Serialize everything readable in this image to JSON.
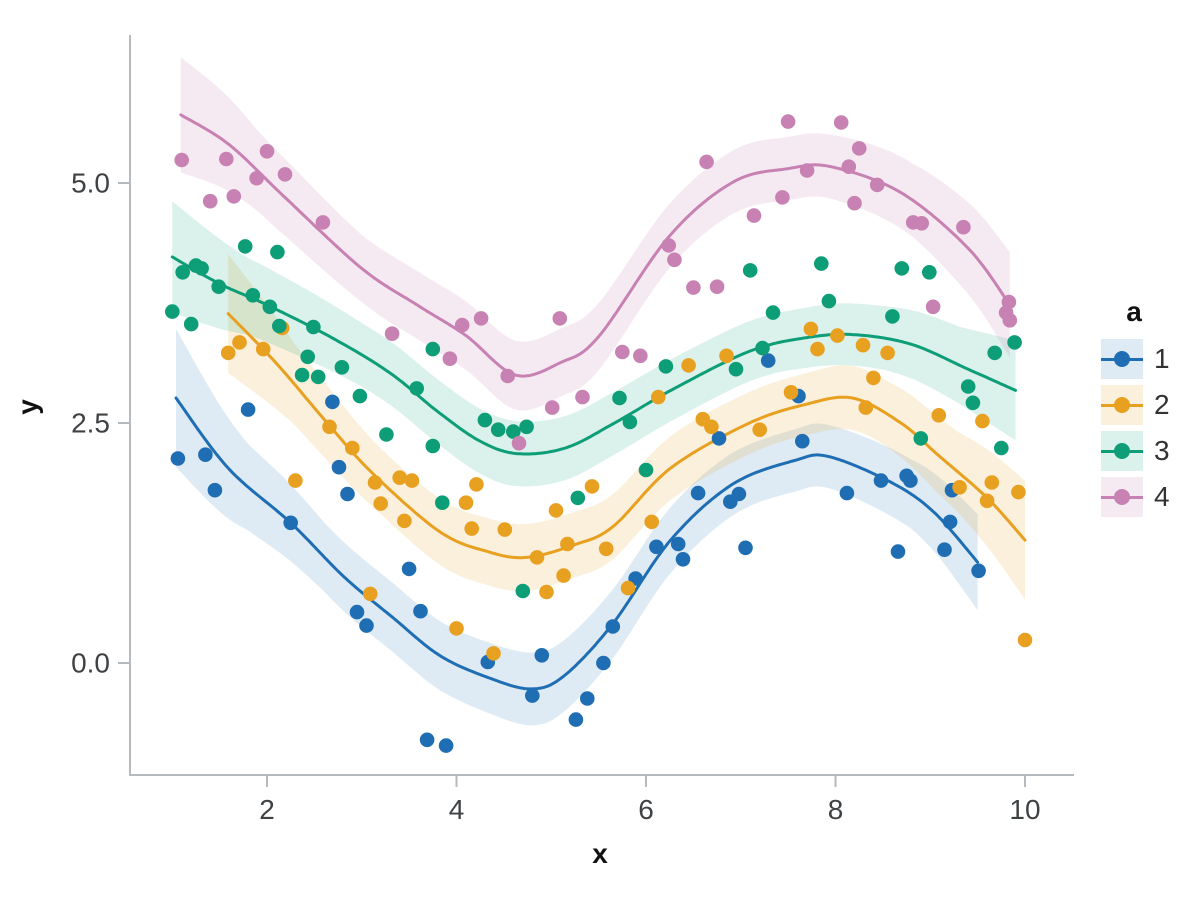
{
  "chart_data": {
    "type": "scatter",
    "subtype": "scatter with loess smooth lines and confidence ribbons",
    "title": "",
    "xlabel": "x",
    "ylabel": "y",
    "xlim": [
      0.55,
      10.47
    ],
    "ylim": [
      -1.17,
      6.54
    ],
    "x_ticks": [
      "2",
      "4",
      "6",
      "8",
      "10"
    ],
    "x_tick_values": [
      2,
      4,
      6,
      8,
      10
    ],
    "y_ticks": [
      "0.0",
      "2.5",
      "5.0"
    ],
    "y_tick_values": [
      0.0,
      2.5,
      5.0
    ],
    "grid": "off",
    "axis_color": "#b5babe",
    "tick_label_color": "#3f4245",
    "legend": {
      "position": "right",
      "title": "a",
      "entries": [
        {
          "label": "1",
          "color": "#1f6eb4",
          "band": "rgba(31,110,180,0.14)"
        },
        {
          "label": "2",
          "color": "#e8a020",
          "band": "rgba(232,160,32,0.16)"
        },
        {
          "label": "3",
          "color": "#0d9e77",
          "band": "rgba(13,158,119,0.15)"
        },
        {
          "label": "4",
          "color": "#c781b2",
          "band": "rgba(199,129,178,0.17)"
        }
      ]
    },
    "series": [
      {
        "name": "1",
        "color": "#1f6eb4",
        "band_color": "rgba(31,110,180,0.14)",
        "points": [
          [
            1.06,
            2.13
          ],
          [
            1.35,
            2.17
          ],
          [
            1.45,
            1.8
          ],
          [
            1.8,
            2.64
          ],
          [
            2.25,
            1.46
          ],
          [
            2.69,
            2.72
          ],
          [
            2.76,
            2.04
          ],
          [
            2.85,
            1.76
          ],
          [
            2.95,
            0.53
          ],
          [
            3.05,
            0.39
          ],
          [
            3.5,
            0.98
          ],
          [
            3.62,
            0.54
          ],
          [
            3.69,
            -0.8
          ],
          [
            3.89,
            -0.86
          ],
          [
            4.33,
            0.01
          ],
          [
            4.8,
            -0.34
          ],
          [
            4.9,
            0.08
          ],
          [
            5.26,
            -0.59
          ],
          [
            5.38,
            -0.37
          ],
          [
            5.55,
            0.0
          ],
          [
            5.65,
            0.38
          ],
          [
            5.89,
            0.88
          ],
          [
            6.11,
            1.21
          ],
          [
            6.34,
            1.24
          ],
          [
            6.39,
            1.08
          ],
          [
            6.55,
            1.77
          ],
          [
            6.77,
            2.34
          ],
          [
            6.89,
            1.68
          ],
          [
            6.98,
            1.76
          ],
          [
            7.05,
            1.2
          ],
          [
            7.29,
            3.15
          ],
          [
            7.61,
            2.78
          ],
          [
            7.65,
            2.31
          ],
          [
            8.12,
            1.77
          ],
          [
            8.48,
            1.9
          ],
          [
            8.66,
            1.16
          ],
          [
            8.75,
            1.95
          ],
          [
            8.79,
            1.9
          ],
          [
            9.15,
            1.18
          ],
          [
            9.21,
            1.47
          ],
          [
            9.23,
            1.8
          ],
          [
            9.51,
            0.96
          ]
        ],
        "line": [
          [
            1.04,
            2.76
          ],
          [
            1.59,
            2.03
          ],
          [
            2.25,
            1.46
          ],
          [
            2.81,
            0.9
          ],
          [
            3.32,
            0.48
          ],
          [
            3.82,
            0.08
          ],
          [
            4.33,
            -0.15
          ],
          [
            4.79,
            -0.27
          ],
          [
            5.14,
            -0.13
          ],
          [
            5.65,
            0.41
          ],
          [
            6.26,
            1.28
          ],
          [
            6.91,
            1.86
          ],
          [
            7.57,
            2.11
          ],
          [
            7.93,
            2.15
          ],
          [
            8.59,
            1.88
          ],
          [
            9.04,
            1.57
          ],
          [
            9.5,
            1.05
          ]
        ],
        "band_halfwidth": [
          [
            1.04,
            0.72
          ],
          [
            1.8,
            0.45
          ],
          [
            2.6,
            0.36
          ],
          [
            4.0,
            0.36
          ],
          [
            4.8,
            0.38
          ],
          [
            6.0,
            0.35
          ],
          [
            7.2,
            0.32
          ],
          [
            8.0,
            0.33
          ],
          [
            8.8,
            0.36
          ],
          [
            9.5,
            0.5
          ]
        ]
      },
      {
        "name": "2",
        "color": "#e8a020",
        "band_color": "rgba(232,160,32,0.16)",
        "points": [
          [
            1.59,
            3.23
          ],
          [
            1.71,
            3.34
          ],
          [
            1.96,
            3.27
          ],
          [
            2.16,
            3.49
          ],
          [
            2.3,
            1.9
          ],
          [
            2.66,
            2.46
          ],
          [
            2.9,
            2.24
          ],
          [
            3.09,
            0.72
          ],
          [
            3.14,
            1.88
          ],
          [
            3.2,
            1.66
          ],
          [
            3.4,
            1.93
          ],
          [
            3.45,
            1.48
          ],
          [
            3.53,
            1.9
          ],
          [
            4.0,
            0.36
          ],
          [
            4.1,
            1.67
          ],
          [
            4.16,
            1.4
          ],
          [
            4.21,
            1.86
          ],
          [
            4.39,
            0.1
          ],
          [
            4.51,
            1.39
          ],
          [
            4.85,
            1.1
          ],
          [
            4.95,
            0.74
          ],
          [
            5.05,
            1.59
          ],
          [
            5.13,
            0.91
          ],
          [
            5.17,
            1.24
          ],
          [
            5.43,
            1.84
          ],
          [
            5.58,
            1.19
          ],
          [
            5.81,
            0.78
          ],
          [
            6.06,
            1.47
          ],
          [
            6.13,
            2.77
          ],
          [
            6.45,
            3.1
          ],
          [
            6.6,
            2.54
          ],
          [
            6.69,
            2.46
          ],
          [
            6.85,
            3.2
          ],
          [
            7.2,
            2.43
          ],
          [
            7.53,
            2.82
          ],
          [
            7.74,
            3.48
          ],
          [
            7.81,
            3.27
          ],
          [
            8.02,
            3.41
          ],
          [
            8.29,
            3.31
          ],
          [
            8.32,
            2.66
          ],
          [
            8.4,
            2.97
          ],
          [
            8.55,
            3.23
          ],
          [
            9.09,
            2.58
          ],
          [
            9.31,
            1.83
          ],
          [
            9.55,
            2.52
          ],
          [
            9.6,
            1.69
          ],
          [
            9.65,
            1.88
          ],
          [
            9.93,
            1.78
          ],
          [
            10.0,
            0.24
          ]
        ],
        "line": [
          [
            1.59,
            3.64
          ],
          [
            2.1,
            3.12
          ],
          [
            2.61,
            2.53
          ],
          [
            3.11,
            1.98
          ],
          [
            3.82,
            1.37
          ],
          [
            4.33,
            1.16
          ],
          [
            4.74,
            1.1
          ],
          [
            5.24,
            1.23
          ],
          [
            5.65,
            1.42
          ],
          [
            6.26,
            2.03
          ],
          [
            7.07,
            2.49
          ],
          [
            7.67,
            2.69
          ],
          [
            8.18,
            2.76
          ],
          [
            8.69,
            2.5
          ],
          [
            9.09,
            2.16
          ],
          [
            9.6,
            1.72
          ],
          [
            10.0,
            1.28
          ]
        ],
        "band_halfwidth": [
          [
            1.59,
            0.62
          ],
          [
            2.3,
            0.42
          ],
          [
            3.2,
            0.34
          ],
          [
            4.5,
            0.35
          ],
          [
            5.5,
            0.34
          ],
          [
            6.5,
            0.33
          ],
          [
            7.5,
            0.32
          ],
          [
            8.5,
            0.34
          ],
          [
            9.3,
            0.42
          ],
          [
            10.0,
            0.62
          ]
        ]
      },
      {
        "name": "3",
        "color": "#0d9e77",
        "band_color": "rgba(13,158,119,0.15)",
        "points": [
          [
            1.0,
            3.66
          ],
          [
            1.11,
            4.07
          ],
          [
            1.2,
            3.53
          ],
          [
            1.25,
            4.14
          ],
          [
            1.31,
            4.11
          ],
          [
            1.49,
            3.92
          ],
          [
            1.77,
            4.34
          ],
          [
            1.85,
            3.83
          ],
          [
            2.03,
            3.71
          ],
          [
            2.11,
            4.28
          ],
          [
            2.13,
            3.51
          ],
          [
            2.37,
            3.0
          ],
          [
            2.43,
            3.19
          ],
          [
            2.49,
            3.5
          ],
          [
            2.54,
            2.98
          ],
          [
            2.79,
            3.08
          ],
          [
            2.98,
            2.78
          ],
          [
            3.26,
            2.38
          ],
          [
            3.58,
            2.86
          ],
          [
            3.75,
            3.27
          ],
          [
            3.75,
            2.26
          ],
          [
            3.85,
            1.67
          ],
          [
            4.3,
            2.53
          ],
          [
            4.44,
            2.43
          ],
          [
            4.6,
            2.41
          ],
          [
            4.74,
            2.46
          ],
          [
            4.7,
            0.75
          ],
          [
            5.28,
            1.72
          ],
          [
            5.72,
            2.76
          ],
          [
            5.83,
            2.51
          ],
          [
            6.0,
            2.01
          ],
          [
            6.21,
            3.09
          ],
          [
            6.95,
            3.06
          ],
          [
            7.1,
            4.09
          ],
          [
            7.23,
            3.28
          ],
          [
            7.34,
            3.65
          ],
          [
            7.85,
            4.16
          ],
          [
            7.93,
            3.77
          ],
          [
            8.6,
            3.61
          ],
          [
            8.7,
            4.11
          ],
          [
            8.9,
            2.34
          ],
          [
            8.99,
            4.07
          ],
          [
            9.4,
            2.88
          ],
          [
            9.45,
            2.71
          ],
          [
            9.68,
            3.23
          ],
          [
            9.75,
            2.24
          ],
          [
            9.89,
            3.34
          ]
        ],
        "line": [
          [
            1.0,
            4.23
          ],
          [
            1.5,
            3.95
          ],
          [
            2.0,
            3.73
          ],
          [
            2.7,
            3.38
          ],
          [
            3.3,
            3.02
          ],
          [
            3.8,
            2.62
          ],
          [
            4.25,
            2.31
          ],
          [
            4.65,
            2.18
          ],
          [
            5.15,
            2.24
          ],
          [
            5.65,
            2.49
          ],
          [
            6.3,
            2.86
          ],
          [
            7.1,
            3.25
          ],
          [
            7.7,
            3.39
          ],
          [
            8.2,
            3.42
          ],
          [
            8.8,
            3.32
          ],
          [
            9.4,
            3.06
          ],
          [
            9.9,
            2.84
          ]
        ],
        "band_halfwidth": [
          [
            1.0,
            0.58
          ],
          [
            1.8,
            0.4
          ],
          [
            3.0,
            0.33
          ],
          [
            4.5,
            0.34
          ],
          [
            5.5,
            0.33
          ],
          [
            6.5,
            0.32
          ],
          [
            7.5,
            0.31
          ],
          [
            8.5,
            0.33
          ],
          [
            9.3,
            0.4
          ],
          [
            9.9,
            0.52
          ]
        ]
      },
      {
        "name": "4",
        "color": "#c781b2",
        "band_color": "rgba(199,129,178,0.17)",
        "points": [
          [
            1.1,
            5.24
          ],
          [
            1.4,
            4.81
          ],
          [
            1.57,
            5.25
          ],
          [
            1.65,
            4.86
          ],
          [
            1.89,
            5.05
          ],
          [
            2.0,
            5.33
          ],
          [
            2.19,
            5.09
          ],
          [
            2.59,
            4.59
          ],
          [
            3.32,
            3.43
          ],
          [
            3.93,
            3.17
          ],
          [
            4.06,
            3.52
          ],
          [
            4.26,
            3.59
          ],
          [
            4.54,
            2.99
          ],
          [
            4.66,
            2.29
          ],
          [
            5.01,
            2.66
          ],
          [
            5.09,
            3.59
          ],
          [
            5.33,
            2.77
          ],
          [
            5.75,
            3.24
          ],
          [
            5.94,
            3.2
          ],
          [
            6.24,
            4.35
          ],
          [
            6.3,
            4.2
          ],
          [
            6.5,
            3.91
          ],
          [
            6.64,
            5.22
          ],
          [
            6.75,
            3.92
          ],
          [
            7.14,
            4.66
          ],
          [
            7.44,
            4.85
          ],
          [
            7.5,
            5.64
          ],
          [
            7.7,
            5.13
          ],
          [
            8.06,
            5.63
          ],
          [
            8.14,
            5.17
          ],
          [
            8.2,
            4.79
          ],
          [
            8.25,
            5.36
          ],
          [
            8.44,
            4.98
          ],
          [
            8.82,
            4.59
          ],
          [
            8.91,
            4.58
          ],
          [
            9.03,
            3.71
          ],
          [
            9.35,
            4.54
          ],
          [
            9.8,
            3.65
          ],
          [
            9.83,
            3.76
          ],
          [
            9.84,
            3.57
          ]
        ],
        "line": [
          [
            1.09,
            5.71
          ],
          [
            1.6,
            5.4
          ],
          [
            2.2,
            4.84
          ],
          [
            3.0,
            4.11
          ],
          [
            3.6,
            3.72
          ],
          [
            4.1,
            3.41
          ],
          [
            4.62,
            3.0
          ],
          [
            5.1,
            3.13
          ],
          [
            5.5,
            3.4
          ],
          [
            6.25,
            4.45
          ],
          [
            6.92,
            5.01
          ],
          [
            7.5,
            5.15
          ],
          [
            7.95,
            5.17
          ],
          [
            8.69,
            4.9
          ],
          [
            9.4,
            4.32
          ],
          [
            9.84,
            3.73
          ]
        ],
        "band_halfwidth": [
          [
            1.09,
            0.6
          ],
          [
            1.9,
            0.42
          ],
          [
            3.0,
            0.35
          ],
          [
            4.6,
            0.36
          ],
          [
            5.5,
            0.35
          ],
          [
            6.5,
            0.33
          ],
          [
            7.9,
            0.33
          ],
          [
            8.8,
            0.38
          ],
          [
            9.84,
            0.55
          ]
        ]
      }
    ]
  }
}
